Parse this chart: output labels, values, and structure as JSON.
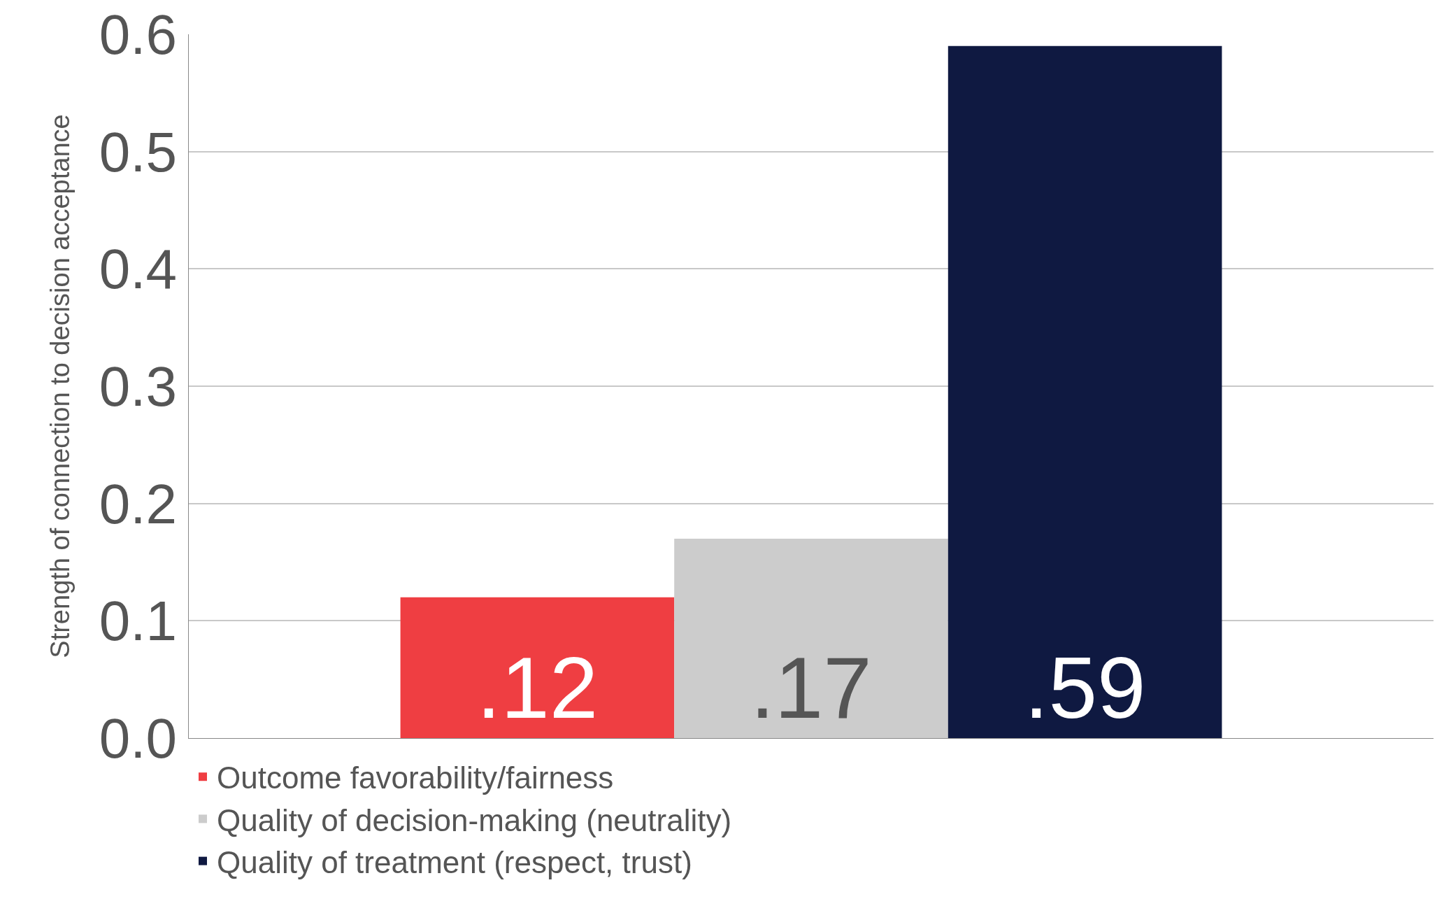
{
  "chart_data": {
    "type": "bar",
    "ylabel": "Strength of connection to decision acceptance",
    "categories": [
      null
    ],
    "series": [
      {
        "name": "Outcome favorability/fairness",
        "color": "#ef3e42",
        "values": [
          0.12
        ],
        "value_labels": [
          ".12"
        ]
      },
      {
        "name": "Quality of decision-making (neutrality)",
        "color": "#cccccc",
        "values": [
          0.17
        ],
        "value_labels": [
          ".17"
        ]
      },
      {
        "name": "Quality of treatment (respect, trust)",
        "color": "#0f1941",
        "values": [
          0.59
        ],
        "value_labels": [
          ".59"
        ]
      }
    ],
    "ylim": [
      0,
      0.6
    ],
    "yticks": [
      {
        "value": 0,
        "label": "0.0"
      },
      0.1,
      0.2,
      0.3,
      0.4,
      0.5,
      0.6
    ],
    "grid": "y",
    "legend": "bottom left"
  }
}
